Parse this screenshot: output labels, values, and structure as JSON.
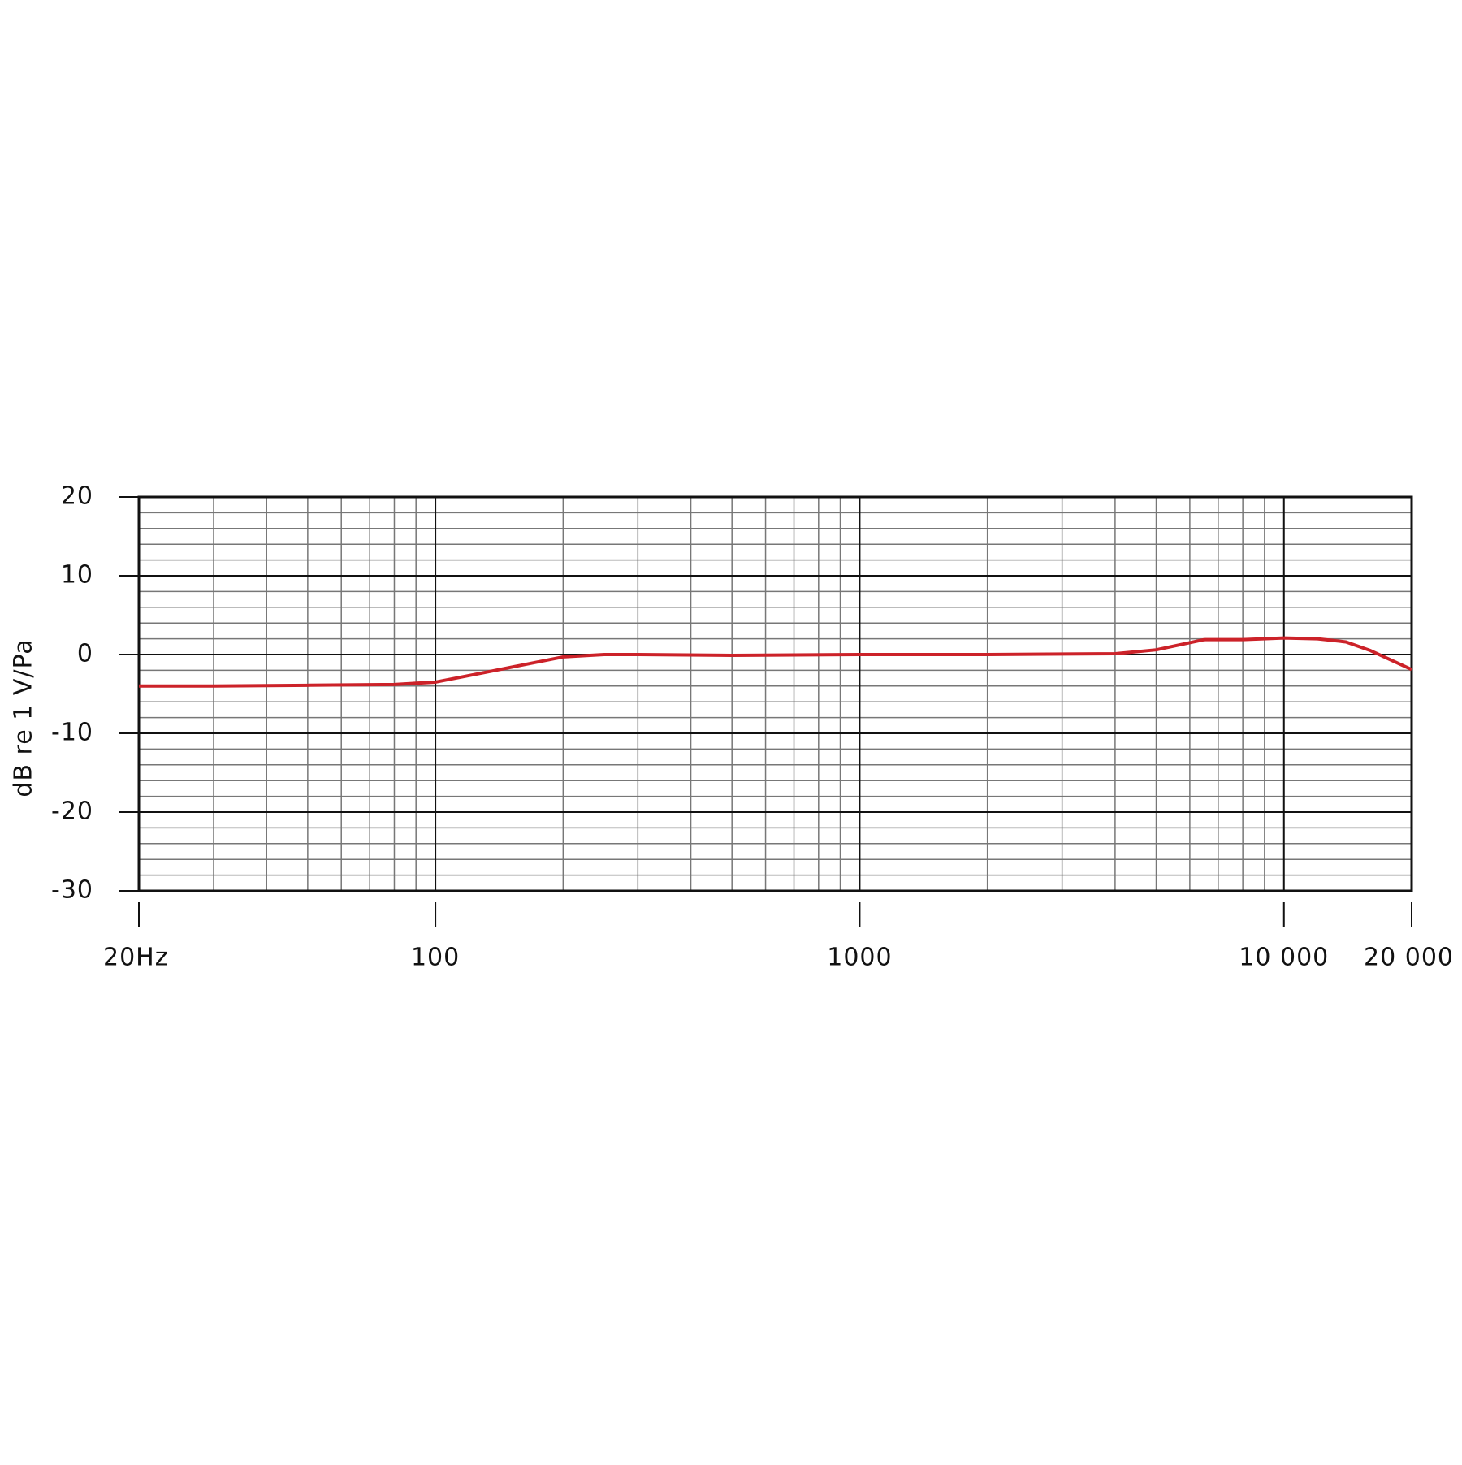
{
  "chart_data": {
    "type": "line",
    "y_label": "dB re 1 V/Pa",
    "x_scale": "log",
    "xlim": [
      20,
      20000
    ],
    "xticks": [
      {
        "value": 20,
        "label": "20Hz"
      },
      100,
      1000,
      {
        "value": 10000,
        "label": "10 000"
      },
      {
        "value": 20000,
        "label": "20 000"
      }
    ],
    "minor_xticks": [
      30,
      40,
      50,
      60,
      70,
      80,
      90,
      200,
      300,
      400,
      500,
      600,
      700,
      800,
      900,
      2000,
      3000,
      4000,
      5000,
      6000,
      7000,
      8000,
      9000
    ],
    "ylim": [
      -30,
      20
    ],
    "yticks": [
      -30,
      -20,
      -10,
      0,
      10,
      20
    ],
    "minor_yticks": [
      -28,
      -26,
      -24,
      -22,
      -18,
      -16,
      -14,
      -12,
      -8,
      -6,
      -4,
      -2,
      2,
      4,
      6,
      8,
      12,
      14,
      16,
      18
    ],
    "grid": true,
    "series": [
      {
        "color": "#cc2229",
        "x": [
          20,
          30,
          50,
          80,
          100,
          130,
          200,
          250,
          300,
          500,
          1000,
          2000,
          4000,
          5000,
          6500,
          8000,
          10000,
          12000,
          14000,
          16000,
          20000
        ],
        "values": [
          -4,
          -4,
          -3.9,
          -3.8,
          -3.5,
          -2.3,
          -0.3,
          0,
          0,
          -0.1,
          0,
          0,
          0.1,
          0.6,
          1.9,
          1.9,
          2.1,
          2,
          1.6,
          0.5,
          -1.9
        ]
      }
    ]
  }
}
